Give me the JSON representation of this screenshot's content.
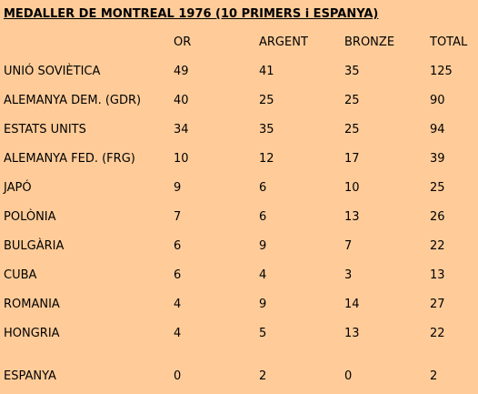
{
  "title": "MEDALLER DE MONTREAL 1976 (10 PRIMERS i ESPANYA)",
  "headers": {
    "country": "",
    "or": "OR",
    "argent": "ARGENT",
    "bronze": "BRONZE",
    "total": "TOTAL"
  },
  "rows": [
    {
      "country": "UNIÓ SOVIÈTICA",
      "or": "49",
      "argent": "41",
      "bronze": "35",
      "total": "125"
    },
    {
      "country": "ALEMANYA DEM. (GDR)",
      "or": "40",
      "argent": "25",
      "bronze": "25",
      "total": "90"
    },
    {
      "country": "ESTATS UNITS",
      "or": "34",
      "argent": "35",
      "bronze": "25",
      "total": "94"
    },
    {
      "country": "ALEMANYA FED. (FRG)",
      "or": "10",
      "argent": "12",
      "bronze": "17",
      "total": "39"
    },
    {
      "country": "JAPÓ",
      "or": "9",
      "argent": "6",
      "bronze": "10",
      "total": "25"
    },
    {
      "country": "POLÒNIA",
      "or": "7",
      "argent": "6",
      "bronze": "13",
      "total": "26"
    },
    {
      "country": "BULGÀRIA",
      "or": "6",
      "argent": "9",
      "bronze": "7",
      "total": "22"
    },
    {
      "country": "CUBA",
      "or": "6",
      "argent": "4",
      "bronze": "3",
      "total": "13"
    },
    {
      "country": "ROMANIA",
      "or": "4",
      "argent": "9",
      "bronze": "14",
      "total": "27"
    },
    {
      "country": "HONGRIA",
      "or": "4",
      "argent": "5",
      "bronze": "13",
      "total": "22"
    }
  ],
  "spain": {
    "country": "ESPANYA",
    "or": "0",
    "argent": "2",
    "bronze": "0",
    "total": "2"
  }
}
